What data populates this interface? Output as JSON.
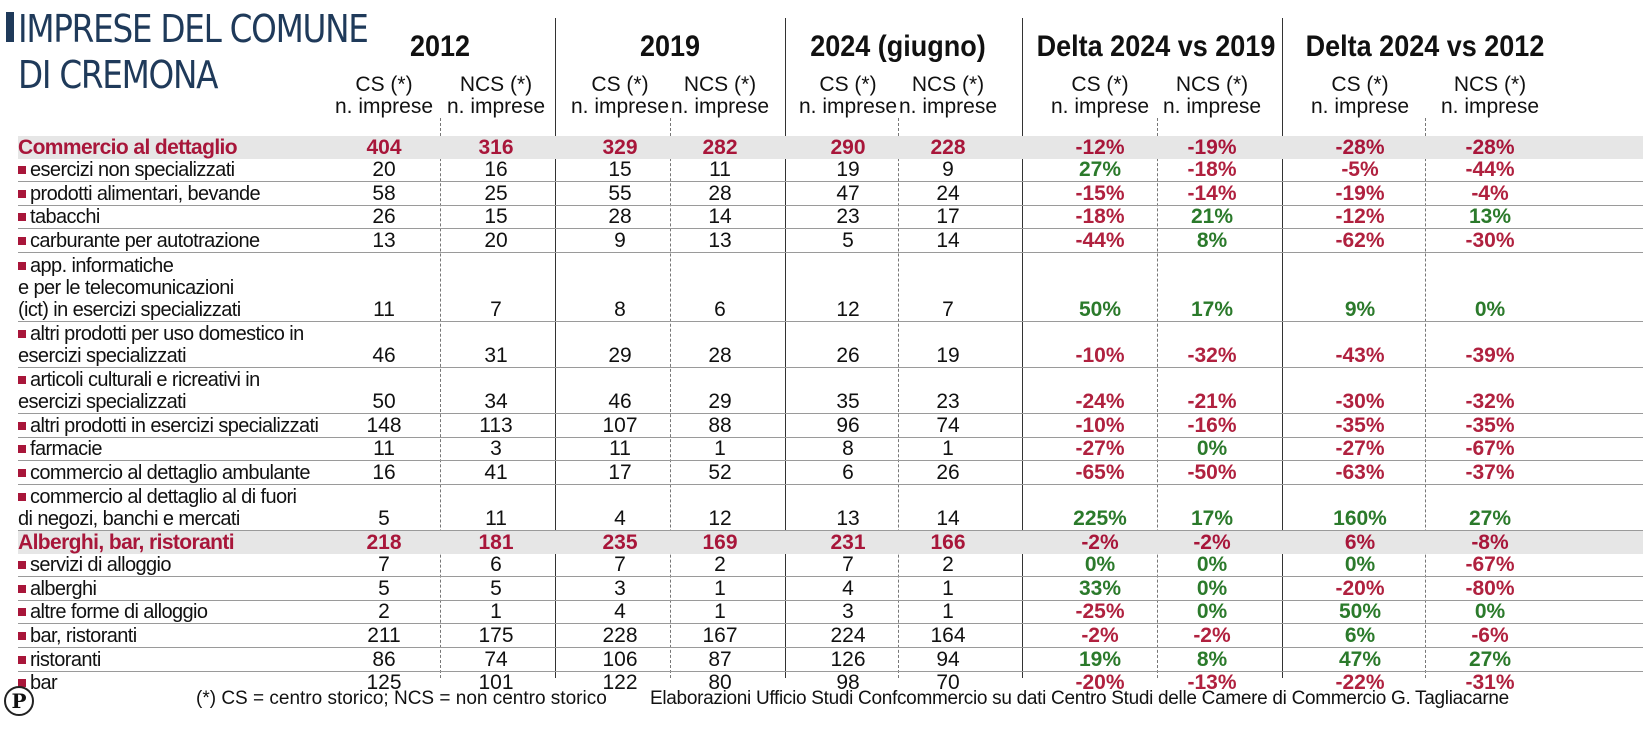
{
  "title": {
    "line1": "IMPRESE DEL COMUNE",
    "line2": "DI CREMONA"
  },
  "groups": [
    "2012",
    "2019",
    "2024 (giugno)",
    "Delta 2024 vs 2019",
    "Delta 2024 vs 2012"
  ],
  "subheaders": [
    {
      "l1": "CS (*)",
      "l2": "n. imprese"
    },
    {
      "l1": "NCS (*)",
      "l2": "n. imprese"
    },
    {
      "l1": "CS (*)",
      "l2": "n. imprese"
    },
    {
      "l1": "NCS (*)",
      "l2": "n. imprese"
    },
    {
      "l1": "CS (*)",
      "l2": "n. imprese"
    },
    {
      "l1": "NCS (*)",
      "l2": "n. imprese"
    },
    {
      "l1": "CS (*)",
      "l2": "n. imprese"
    },
    {
      "l1": "NCS (*)",
      "l2": "n. imprese"
    },
    {
      "l1": "CS (*)",
      "l2": "n. imprese"
    },
    {
      "l1": "NCS (*)",
      "l2": "n. imprese"
    }
  ],
  "rows": [
    {
      "section": true,
      "label": [
        "Commercio al dettaglio"
      ],
      "values": [
        "404",
        "316",
        "329",
        "282",
        "290",
        "228",
        "-12%",
        "-19%",
        "-28%",
        "-28%"
      ]
    },
    {
      "label": [
        "esercizi non specializzati"
      ],
      "values": [
        "20",
        "16",
        "15",
        "11",
        "19",
        "9",
        "27%",
        "-18%",
        "-5%",
        "-44%"
      ]
    },
    {
      "label": [
        "prodotti alimentari, bevande"
      ],
      "values": [
        "58",
        "25",
        "55",
        "28",
        "47",
        "24",
        "-15%",
        "-14%",
        "-19%",
        "-4%"
      ]
    },
    {
      "label": [
        "tabacchi"
      ],
      "values": [
        "26",
        "15",
        "28",
        "14",
        "23",
        "17",
        "-18%",
        "21%",
        "-12%",
        "13%"
      ]
    },
    {
      "label": [
        "carburante per autotrazione"
      ],
      "values": [
        "13",
        "20",
        "9",
        "13",
        "5",
        "14",
        "-44%",
        "8%",
        "-62%",
        "-30%"
      ]
    },
    {
      "label": [
        "app. informatiche",
        "e per le telecomunicazioni",
        "(ict) in esercizi specializzati"
      ],
      "values": [
        "11",
        "7",
        "8",
        "6",
        "12",
        "7",
        "50%",
        "17%",
        "9%",
        "0%"
      ]
    },
    {
      "label": [
        "altri prodotti per uso domestico in",
        "esercizi specializzati"
      ],
      "values": [
        "46",
        "31",
        "29",
        "28",
        "26",
        "19",
        "-10%",
        "-32%",
        "-43%",
        "-39%"
      ]
    },
    {
      "label": [
        "articoli culturali e ricreativi in",
        "esercizi specializzati"
      ],
      "values": [
        "50",
        "34",
        "46",
        "29",
        "35",
        "23",
        "-24%",
        "-21%",
        "-30%",
        "-32%"
      ]
    },
    {
      "label": [
        "altri prodotti in esercizi specializzati"
      ],
      "values": [
        "148",
        "113",
        "107",
        "88",
        "96",
        "74",
        "-10%",
        "-16%",
        "-35%",
        "-35%"
      ]
    },
    {
      "label": [
        "farmacie"
      ],
      "values": [
        "11",
        "3",
        "11",
        "1",
        "8",
        "1",
        "-27%",
        "0%",
        "-27%",
        "-67%"
      ]
    },
    {
      "label": [
        "commercio al dettaglio ambulante"
      ],
      "values": [
        "16",
        "41",
        "17",
        "52",
        "6",
        "26",
        "-65%",
        "-50%",
        "-63%",
        "-37%"
      ]
    },
    {
      "label": [
        "commercio al dettaglio al di fuori",
        "di negozi, banchi e mercati"
      ],
      "values": [
        "5",
        "11",
        "4",
        "12",
        "13",
        "14",
        "225%",
        "17%",
        "160%",
        "27%"
      ]
    },
    {
      "section": true,
      "label": [
        "Alberghi, bar, ristoranti"
      ],
      "values": [
        "218",
        "181",
        "235",
        "169",
        "231",
        "166",
        "-2%",
        "-2%",
        "6%",
        "-8%"
      ]
    },
    {
      "label": [
        "servizi di alloggio"
      ],
      "values": [
        "7",
        "6",
        "7",
        "2",
        "7",
        "2",
        "0%",
        "0%",
        "0%",
        "-67%"
      ]
    },
    {
      "label": [
        "alberghi"
      ],
      "values": [
        "5",
        "5",
        "3",
        "1",
        "4",
        "1",
        "33%",
        "0%",
        "-20%",
        "-80%"
      ]
    },
    {
      "label": [
        "altre forme di alloggio"
      ],
      "values": [
        "2",
        "1",
        "4",
        "1",
        "3",
        "1",
        "-25%",
        "0%",
        "50%",
        "0%"
      ]
    },
    {
      "label": [
        "bar, ristoranti"
      ],
      "values": [
        "211",
        "175",
        "228",
        "167",
        "224",
        "164",
        "-2%",
        "-2%",
        "6%",
        "-6%"
      ]
    },
    {
      "label": [
        "ristoranti"
      ],
      "values": [
        "86",
        "74",
        "106",
        "87",
        "126",
        "94",
        "19%",
        "8%",
        "47%",
        "27%"
      ]
    },
    {
      "label": [
        "bar"
      ],
      "values": [
        "125",
        "101",
        "122",
        "80",
        "98",
        "70",
        "-20%",
        "-13%",
        "-22%",
        "-31%"
      ]
    }
  ],
  "footer": {
    "logo": "P",
    "note": "(*) CS = centro storico; NCS = non centro storico",
    "source": "Elaborazioni Ufficio Studi Confcommercio su dati Centro Studi delle Camere di Commercio G. Tagliacarne"
  },
  "colors": {
    "accent": "#a8163a",
    "positive": "#2b7a2b",
    "negative": "#b0213f",
    "title": "#1f3a5a",
    "section_bg": "#e6e6e6"
  }
}
